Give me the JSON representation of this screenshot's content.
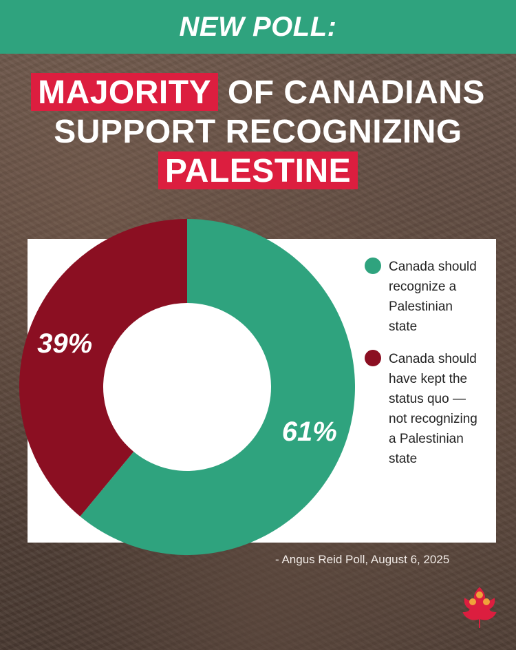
{
  "header": {
    "banner": "NEW POLL:"
  },
  "headline": {
    "highlight1": "MAJORITY",
    "line1_rest": " OF CANADIANS",
    "line2": "SUPPORT RECOGNIZING",
    "highlight2": "PALESTINE"
  },
  "chart_data": {
    "type": "pie",
    "donut": true,
    "legend_position": "right",
    "series": [
      {
        "name": "Canada should recognize a Palestinian state",
        "value": 61,
        "label": "61%",
        "color": "#2fa37e"
      },
      {
        "name": "Canada should have kept the status quo — not recognizing a Palestinian state",
        "value": 39,
        "label": "39%",
        "color": "#8b0f22"
      }
    ]
  },
  "legend": {
    "items": [
      {
        "lines": [
          "Canada should",
          "recognize a",
          "Palestinian",
          "state"
        ],
        "color": "#2fa37e"
      },
      {
        "lines": [
          "Canada should",
          "have kept the",
          "status quo —",
          "not recognizing",
          "a Palestinian",
          "state"
        ],
        "color": "#8b0f22"
      }
    ]
  },
  "source": "- Angus Reid Poll, August 6, 2025",
  "colors": {
    "banner": "#2fa37e",
    "highlight": "#dc1e3f"
  },
  "logo": {
    "icon": "maple-leaf-people-logo"
  }
}
